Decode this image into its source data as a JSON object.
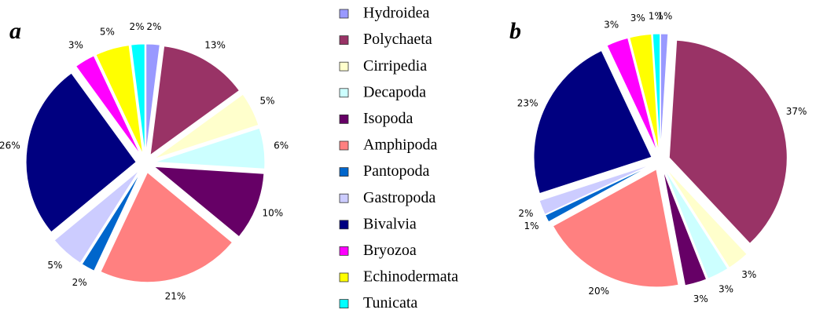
{
  "chart_data": [
    {
      "type": "pie",
      "title": "a",
      "categories": [
        "Hydroidea",
        "Polychaeta",
        "Cirripedia",
        "Decapoda",
        "Isopoda",
        "Amphipoda",
        "Pantopoda",
        "Gastropoda",
        "Bivalvia",
        "Bryozoa",
        "Echinodermata",
        "Tunicata"
      ],
      "values": [
        2,
        13,
        5,
        6,
        10,
        21,
        2,
        5,
        26,
        3,
        5,
        2
      ],
      "value_labels": [
        "2%",
        "13%",
        "5%",
        "6%",
        "10%",
        "21%",
        "2%",
        "5%",
        "26%",
        "3%",
        "5%",
        "2%"
      ],
      "colors": [
        "#9999ff",
        "#993366",
        "#ffffcc",
        "#ccffff",
        "#660066",
        "#ff8080",
        "#0066cc",
        "#ccccff",
        "#000080",
        "#ff00ff",
        "#ffff00",
        "#00ffff"
      ]
    },
    {
      "type": "pie",
      "title": "b",
      "categories": [
        "Hydroidea",
        "Polychaeta",
        "Cirripedia",
        "Decapoda",
        "Isopoda",
        "Amphipoda",
        "Pantopoda",
        "Gastropoda",
        "Bivalvia",
        "Bryozoa",
        "Echinodermata",
        "Tunicata"
      ],
      "values": [
        1,
        37,
        3,
        3,
        3,
        20,
        1,
        2,
        23,
        3,
        3,
        1
      ],
      "value_labels": [
        "1%",
        "37%",
        "3%",
        "3%",
        "3%",
        "20%",
        "1%",
        "2%",
        "23%",
        "3%",
        "3%",
        "1%"
      ],
      "colors": [
        "#9999ff",
        "#993366",
        "#ffffcc",
        "#ccffff",
        "#660066",
        "#ff8080",
        "#0066cc",
        "#ccccff",
        "#000080",
        "#ff00ff",
        "#ffff00",
        "#00ffff"
      ]
    }
  ]
}
